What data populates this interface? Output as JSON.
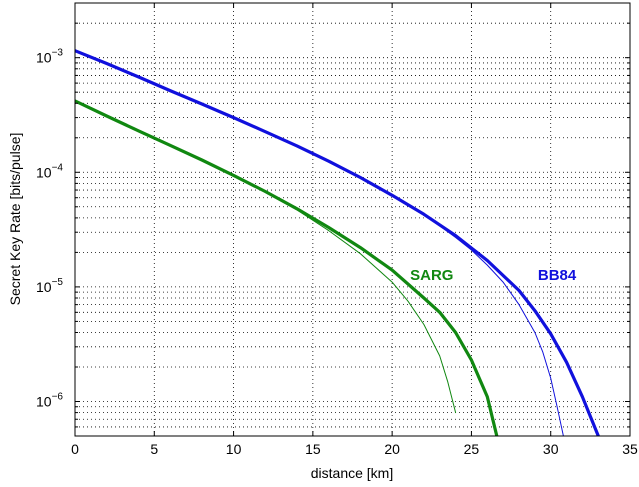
{
  "chart_data": {
    "type": "line",
    "xlabel": "distance [km]",
    "ylabel": "Secret Key Rate [bits/pulse]",
    "xlim": [
      0,
      35
    ],
    "ylim": [
      5e-07,
      0.003
    ],
    "y_scale": "log",
    "grid": true,
    "x_ticks": [
      "0",
      "5",
      "10",
      "15",
      "20",
      "25",
      "30",
      "35"
    ],
    "y_ticks": [
      {
        "base": "10",
        "exp": "−6",
        "value": 1e-06
      },
      {
        "base": "10",
        "exp": "−5",
        "value": 1e-05
      },
      {
        "base": "10",
        "exp": "−4",
        "value": 0.0001
      },
      {
        "base": "10",
        "exp": "−3",
        "value": 0.001
      }
    ],
    "annotations": [
      {
        "text": "SARG",
        "x": 22.5,
        "y": 1.15e-05,
        "color": "#118811"
      },
      {
        "text": "BB84",
        "x": 30.4,
        "y": 1.15e-05,
        "color": "#1111dd"
      }
    ],
    "series": [
      {
        "protocol": "BB84",
        "variant": "thick",
        "color": "#1111dd",
        "x": [
          0,
          2,
          4,
          6,
          8,
          10,
          12,
          14,
          16,
          18,
          20,
          22,
          24,
          26,
          28,
          29,
          30,
          31,
          32,
          33
        ],
        "y": [
          0.00115,
          0.00089,
          0.00068,
          0.000516,
          0.000394,
          0.0003,
          0.000226,
          0.00017,
          0.000125,
          9e-05,
          6.3e-05,
          4.3e-05,
          2.8e-05,
          1.7e-05,
          9.3e-06,
          6.2e-06,
          3.9e-06,
          2.2e-06,
          1.1e-06,
          5e-07
        ]
      },
      {
        "protocol": "BB84",
        "variant": "thin",
        "color": "#1111dd",
        "x": [
          0,
          2,
          4,
          6,
          8,
          10,
          12,
          14,
          16,
          18,
          20,
          22,
          24,
          25,
          26,
          27,
          28,
          29,
          29.5,
          30,
          30.4,
          30.8
        ],
        "y": [
          0.00115,
          0.00089,
          0.00068,
          0.000516,
          0.000394,
          0.0003,
          0.000226,
          0.00017,
          0.000125,
          9e-05,
          6.3e-05,
          4.3e-05,
          2.7e-05,
          2.1e-05,
          1.55e-05,
          1.1e-05,
          7e-06,
          4e-06,
          2.7e-06,
          1.6e-06,
          9e-07,
          5e-07
        ]
      },
      {
        "protocol": "SARG",
        "variant": "thick",
        "color": "#118811",
        "x": [
          0,
          2,
          4,
          6,
          8,
          10,
          12,
          14,
          16,
          18,
          20,
          22,
          23,
          24,
          25,
          26,
          26.6
        ],
        "y": [
          0.00042,
          0.00031,
          0.00023,
          0.000172,
          0.000128,
          9.4e-05,
          6.8e-05,
          4.8e-05,
          3.3e-05,
          2.2e-05,
          1.4e-05,
          8e-06,
          6e-06,
          4e-06,
          2.3e-06,
          1.1e-06,
          5e-07
        ]
      },
      {
        "protocol": "SARG",
        "variant": "thin",
        "color": "#118811",
        "x": [
          0,
          2,
          4,
          6,
          8,
          10,
          12,
          14,
          16,
          18,
          20,
          21,
          22,
          23,
          23.5,
          24
        ],
        "y": [
          0.00042,
          0.00031,
          0.00023,
          0.000172,
          0.000128,
          9.4e-05,
          6.8e-05,
          4.7e-05,
          3.1e-05,
          1.95e-05,
          1.1e-05,
          7.5e-06,
          4.7e-06,
          2.5e-06,
          1.5e-06,
          8e-07
        ]
      }
    ]
  }
}
